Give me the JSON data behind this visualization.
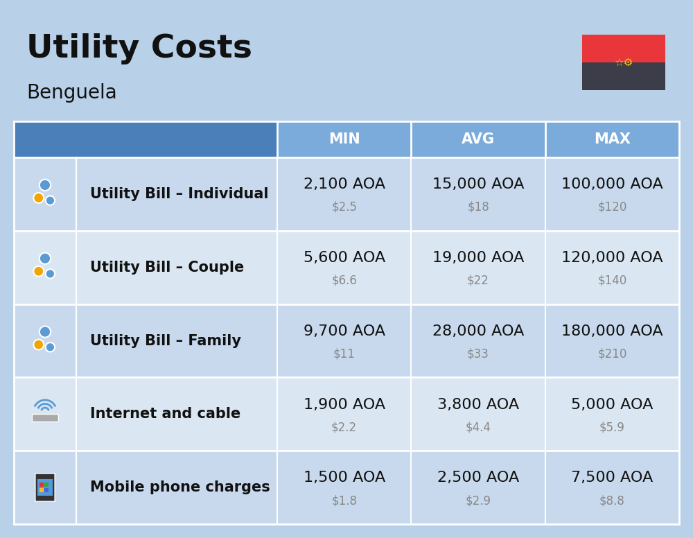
{
  "title": "Utility Costs",
  "subtitle": "Benguela",
  "background_color": "#b8d0e8",
  "header_bg_color_dark": "#4a7fba",
  "header_bg_color_light": "#7aabda",
  "header_text_color": "#ffffff",
  "row_bg_color_1": "#c8d9ed",
  "row_bg_color_2": "#dae6f2",
  "icon_col_bg": "#b0c8e0",
  "separator_color": "#ffffff",
  "col_headers": [
    "MIN",
    "AVG",
    "MAX"
  ],
  "rows": [
    {
      "label": "Utility Bill – Individual",
      "min_aoa": "2,100 AOA",
      "min_usd": "$2.5",
      "avg_aoa": "15,000 AOA",
      "avg_usd": "$18",
      "max_aoa": "100,000 AOA",
      "max_usd": "$120"
    },
    {
      "label": "Utility Bill – Couple",
      "min_aoa": "5,600 AOA",
      "min_usd": "$6.6",
      "avg_aoa": "19,000 AOA",
      "avg_usd": "$22",
      "max_aoa": "120,000 AOA",
      "max_usd": "$140"
    },
    {
      "label": "Utility Bill – Family",
      "min_aoa": "9,700 AOA",
      "min_usd": "$11",
      "avg_aoa": "28,000 AOA",
      "avg_usd": "$33",
      "max_aoa": "180,000 AOA",
      "max_usd": "$210"
    },
    {
      "label": "Internet and cable",
      "min_aoa": "1,900 AOA",
      "min_usd": "$2.2",
      "avg_aoa": "3,800 AOA",
      "avg_usd": "$4.4",
      "max_aoa": "5,000 AOA",
      "max_usd": "$5.9"
    },
    {
      "label": "Mobile phone charges",
      "min_aoa": "1,500 AOA",
      "min_usd": "$1.8",
      "avg_aoa": "2,500 AOA",
      "avg_usd": "$2.9",
      "max_aoa": "7,500 AOA",
      "max_usd": "$8.8"
    }
  ],
  "title_fontsize": 34,
  "subtitle_fontsize": 20,
  "header_fontsize": 15,
  "label_fontsize": 15,
  "value_fontsize": 16,
  "usd_fontsize": 12,
  "usd_color": "#888888",
  "flag_red": "#e8363a",
  "flag_dark": "#3d3d4a",
  "flag_yellow": "#f5c518"
}
